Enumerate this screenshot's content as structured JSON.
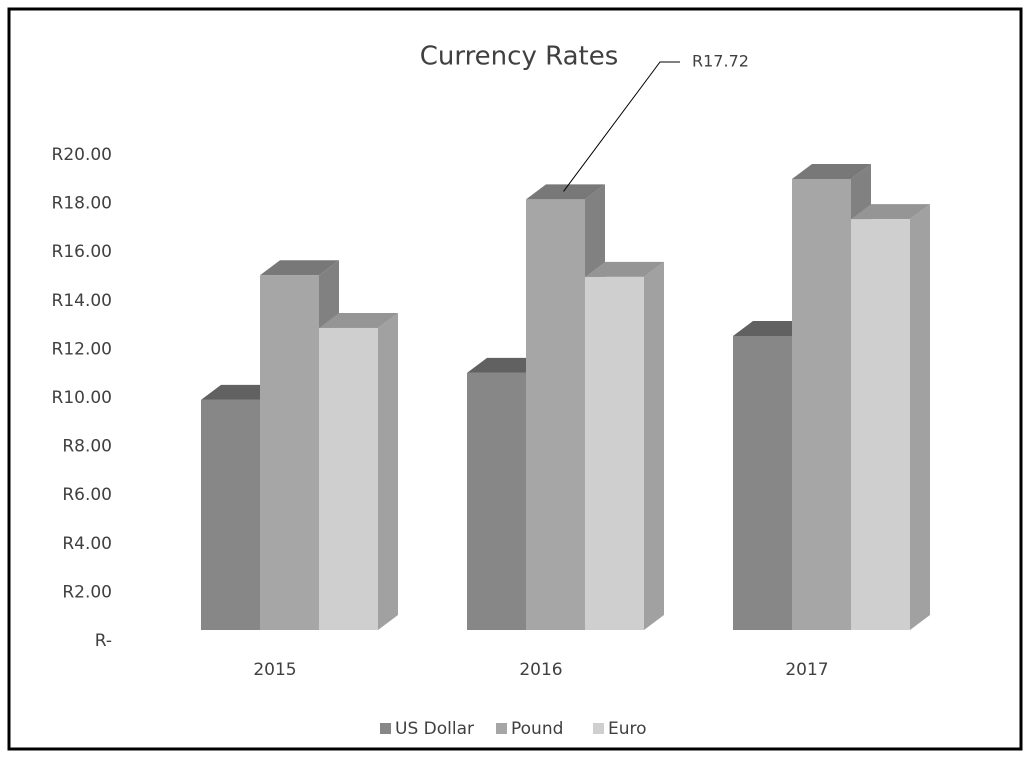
{
  "chart_data": {
    "type": "bar3d",
    "title": "Currency Rates",
    "categories": [
      "2015",
      "2016",
      "2017"
    ],
    "series": [
      {
        "name": "US Dollar",
        "color": "#878787",
        "values": [
          9.47,
          10.58,
          12.1
        ]
      },
      {
        "name": "Pound",
        "color": "#a6a6a6",
        "values": [
          14.6,
          17.72,
          18.56
        ],
        "value_labels": [
          null,
          "R17.72",
          null
        ]
      },
      {
        "name": "Euro",
        "color": "#cfcfcf",
        "values": [
          12.43,
          14.53,
          16.91
        ]
      }
    ],
    "ylim": [
      0,
      20
    ],
    "yticks": [
      {
        "value": 0,
        "label": "R-"
      },
      {
        "value": 2,
        "label": "R2.00"
      },
      {
        "value": 4,
        "label": "R4.00"
      },
      {
        "value": 6,
        "label": "R6.00"
      },
      {
        "value": 8,
        "label": "R8.00"
      },
      {
        "value": 10,
        "label": "R10.00"
      },
      {
        "value": 12,
        "label": "R12.00"
      },
      {
        "value": 14,
        "label": "R14.00"
      },
      {
        "value": 16,
        "label": "R16.00"
      },
      {
        "value": 18,
        "label": "R18.00"
      },
      {
        "value": 20,
        "label": "R20.00"
      }
    ],
    "grid": false,
    "legend": "bottom"
  }
}
